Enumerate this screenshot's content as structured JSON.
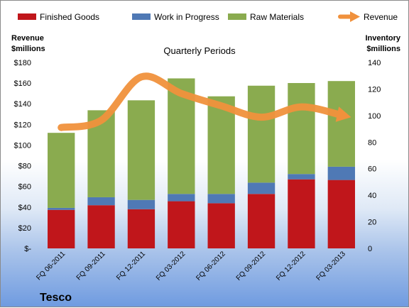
{
  "company": "Tesco",
  "chart_data": {
    "type": "bar",
    "stacked": true,
    "title": "Quarterly Periods",
    "y_left_label": [
      "Revenue",
      "$millions"
    ],
    "y_right_label": [
      "Inventory",
      "$millions"
    ],
    "y_left_ticks": [
      "$-",
      "$20",
      "$40",
      "$60",
      "$80",
      "$100",
      "$120",
      "$140",
      "$160",
      "$180"
    ],
    "y_right_ticks": [
      "0",
      "20",
      "40",
      "60",
      "80",
      "100",
      "120",
      "140"
    ],
    "ylim_left": [
      0,
      180
    ],
    "ylim_right": [
      0,
      140
    ],
    "categories": [
      "FQ 06-2011",
      "FQ 09-2011",
      "FQ 12-2011",
      "FQ 03-2012",
      "FQ 06-2012",
      "FQ 09-2012",
      "FQ 12-2012",
      "FQ 03-2013"
    ],
    "series": [
      {
        "name": "Finished Goods",
        "color": "#c0161b",
        "axis": "right",
        "values": [
          29,
          32.5,
          29.5,
          35.5,
          34,
          41,
          52,
          51.5
        ]
      },
      {
        "name": "Work in Progress",
        "color": "#4f79b5",
        "axis": "right",
        "values": [
          1.5,
          6,
          7,
          5.5,
          7,
          8.5,
          4,
          10
        ]
      },
      {
        "name": "Raw Materials",
        "color": "#8aab4f",
        "axis": "right",
        "values": [
          56.5,
          65.5,
          75,
          87,
          73.5,
          73,
          68.5,
          64.5
        ]
      }
    ],
    "line_series": {
      "name": "Revenue",
      "color": "#f0913c",
      "axis": "left",
      "values": [
        117,
        124,
        166,
        150,
        138,
        127,
        137,
        129
      ]
    },
    "legend_position": "top",
    "grid": false
  }
}
